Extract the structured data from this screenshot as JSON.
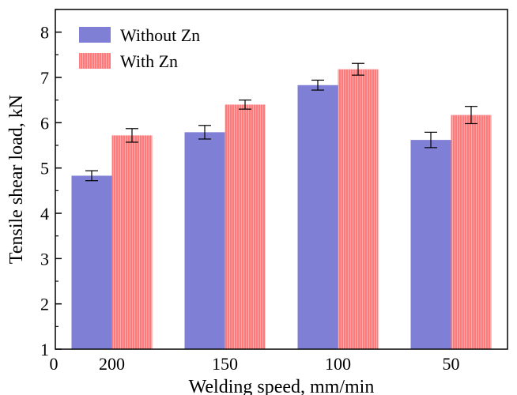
{
  "chart_data": {
    "type": "bar",
    "title": "",
    "xlabel": "Welding speed, mm/min",
    "ylabel": "Tensile shear load, kN",
    "categories": [
      "200",
      "150",
      "100",
      "50"
    ],
    "x_origin_label": "0",
    "ylim": [
      1,
      8.5
    ],
    "yticks": [
      1,
      2,
      3,
      4,
      5,
      6,
      7,
      8
    ],
    "grid": false,
    "legend_position": "top-left",
    "series": [
      {
        "name": "Without Zn",
        "color": "#7f7fd5",
        "values": [
          4.83,
          5.79,
          6.83,
          5.62
        ],
        "errors": [
          0.11,
          0.15,
          0.11,
          0.17
        ]
      },
      {
        "name": "With Zn",
        "color": "#ff8080",
        "values": [
          5.72,
          6.4,
          7.18,
          6.17
        ],
        "errors": [
          0.15,
          0.1,
          0.13,
          0.19
        ]
      }
    ]
  }
}
